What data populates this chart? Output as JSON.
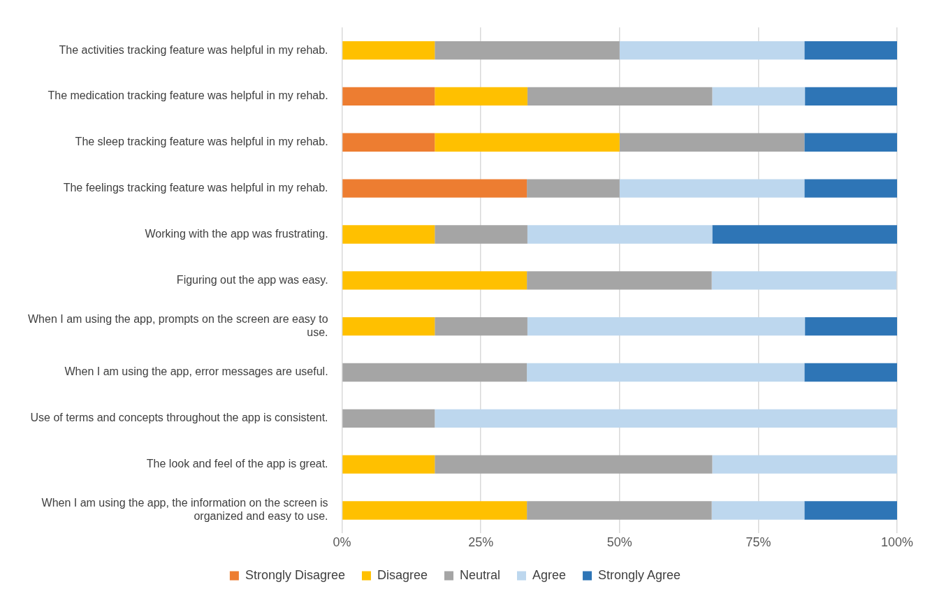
{
  "chart_data": {
    "type": "bar",
    "orientation": "horizontal",
    "stacked": true,
    "categories": [
      "The activities tracking feature was helpful in my rehab.",
      "The medication tracking feature was helpful in my rehab.",
      "The sleep tracking feature was helpful in my rehab.",
      "The feelings tracking feature was helpful in my rehab.",
      "Working with the app was frustrating.",
      "Figuring out the app was easy.",
      "When I am using the app, prompts on the screen are easy to use.",
      "When I am using the app, error messages are useful.",
      "Use of terms and concepts throughout the app is consistent.",
      "The look and feel of the app is great.",
      "When I am using the app, the information on the screen is organized and easy to use."
    ],
    "series": [
      {
        "name": "Strongly Disagree",
        "color": "#ed7d31",
        "values": [
          0,
          16.7,
          16.7,
          33.3,
          0,
          0,
          0,
          0,
          0,
          0,
          0
        ]
      },
      {
        "name": "Disagree",
        "color": "#ffc000",
        "values": [
          16.7,
          16.7,
          33.3,
          0,
          16.7,
          33.3,
          16.7,
          0,
          0,
          16.7,
          33.3
        ]
      },
      {
        "name": "Neutral",
        "color": "#a5a5a5",
        "values": [
          33.3,
          33.3,
          33.3,
          16.7,
          16.7,
          33.3,
          16.7,
          33.3,
          16.7,
          50,
          33.3
        ]
      },
      {
        "name": "Agree",
        "color": "#bdd7ee",
        "values": [
          33.3,
          16.7,
          0,
          33.3,
          33.3,
          33.3,
          50,
          50,
          83.3,
          33.3,
          16.7
        ]
      },
      {
        "name": "Strongly Agree",
        "color": "#2e75b6",
        "values": [
          16.7,
          16.7,
          16.7,
          16.7,
          33.3,
          0,
          16.7,
          16.7,
          0,
          0,
          16.7
        ]
      }
    ],
    "xlim": [
      0,
      100
    ],
    "xticks": [
      {
        "value": 0,
        "label": "0%"
      },
      {
        "value": 25,
        "label": "25%"
      },
      {
        "value": 50,
        "label": "50%"
      },
      {
        "value": 75,
        "label": "75%"
      },
      {
        "value": 100,
        "label": "100%"
      }
    ],
    "grid": "x",
    "legend": "bottom"
  }
}
